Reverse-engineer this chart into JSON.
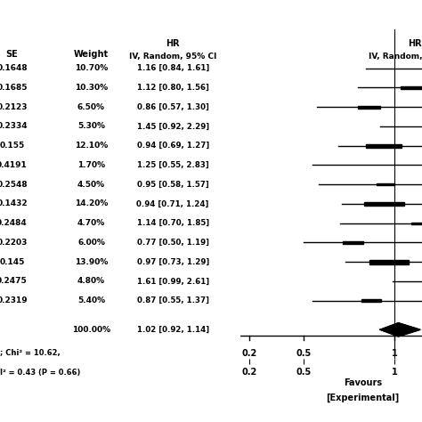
{
  "studies": [
    {
      "se": "0.1648",
      "weight": "10.70%",
      "hr": 1.16,
      "ci_low": 0.84,
      "ci_high": 1.61
    },
    {
      "se": "0.1685",
      "weight": "10.30%",
      "hr": 1.12,
      "ci_low": 0.8,
      "ci_high": 1.56
    },
    {
      "se": "0.2123",
      "weight": "6.50%",
      "hr": 0.86,
      "ci_low": 0.57,
      "ci_high": 1.3
    },
    {
      "se": "0.2334",
      "weight": "5.30%",
      "hr": 1.45,
      "ci_low": 0.92,
      "ci_high": 2.29
    },
    {
      "se": "0.155",
      "weight": "12.10%",
      "hr": 0.94,
      "ci_low": 0.69,
      "ci_high": 1.27
    },
    {
      "se": "0.4191",
      "weight": "1.70%",
      "hr": 1.25,
      "ci_low": 0.55,
      "ci_high": 2.83
    },
    {
      "se": "0.2548",
      "weight": "4.50%",
      "hr": 0.95,
      "ci_low": 0.58,
      "ci_high": 1.57
    },
    {
      "se": "0.1432",
      "weight": "14.20%",
      "hr": 0.94,
      "ci_low": 0.71,
      "ci_high": 1.24
    },
    {
      "se": "0.2484",
      "weight": "4.70%",
      "hr": 1.14,
      "ci_low": 0.7,
      "ci_high": 1.85
    },
    {
      "se": "0.2203",
      "weight": "6.00%",
      "hr": 0.77,
      "ci_low": 0.5,
      "ci_high": 1.19
    },
    {
      "se": "0.145",
      "weight": "13.90%",
      "hr": 0.97,
      "ci_low": 0.73,
      "ci_high": 1.29
    },
    {
      "se": "0.2475",
      "weight": "4.80%",
      "hr": 1.61,
      "ci_low": 0.99,
      "ci_high": 2.61
    },
    {
      "se": "0.2319",
      "weight": "5.40%",
      "hr": 0.87,
      "ci_low": 0.55,
      "ci_high": 1.37
    }
  ],
  "summary": {
    "weight": "100.00%",
    "hr": 1.02,
    "ci_low": 0.92,
    "ci_high": 1.14
  },
  "col_headers_left": [
    "SE",
    "Weight",
    "HR\nIV, Random, 95% CI"
  ],
  "col_header_right_line1": "HR",
  "col_header_right_line2": "IV, Random,",
  "footnote1": "; Chi² = 10.62,",
  "footnote2": "I² = 0.43 (P = 0.66)",
  "xlabel_line1": "Favours",
  "xlabel_line2": "[Experimental]",
  "xticks": [
    0.2,
    0.5,
    1.0
  ],
  "xticklabels": [
    "0.2",
    "0.5",
    "1"
  ],
  "xmin": 0.15,
  "xmax": 1.15,
  "ref_line": 1.0,
  "bg_color": "#ffffff",
  "text_color": "#000000",
  "box_color": "#000000",
  "diamond_color": "#000000",
  "line_color": "#000000"
}
